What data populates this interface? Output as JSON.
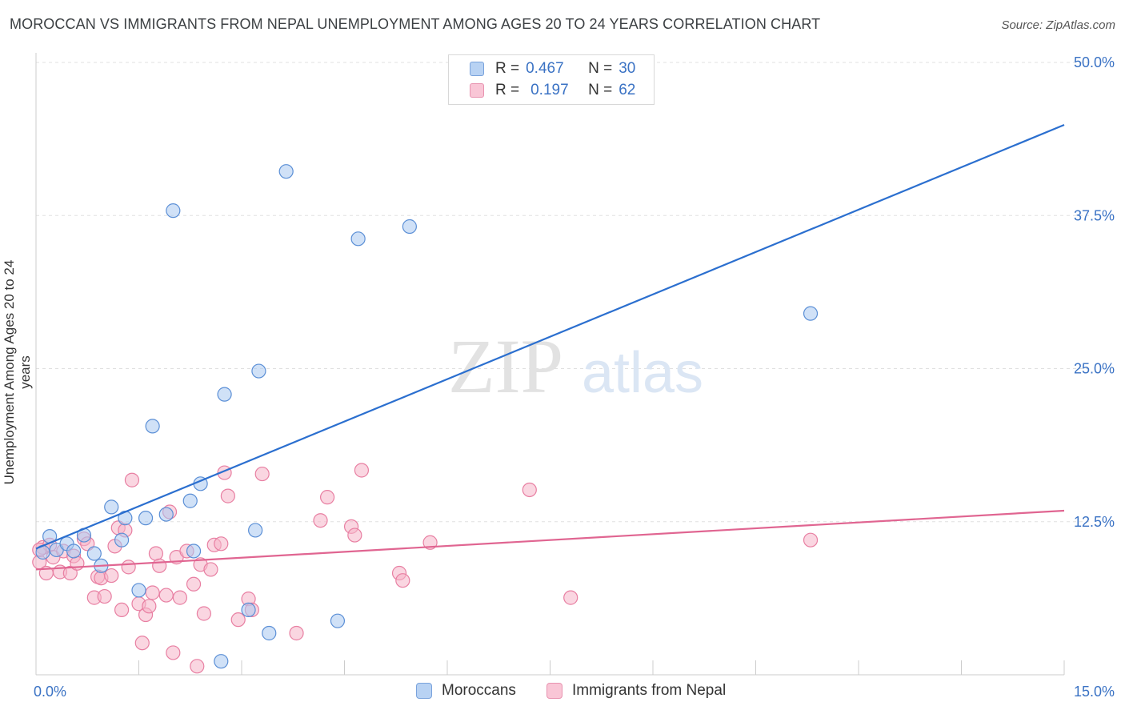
{
  "title": "MOROCCAN VS IMMIGRANTS FROM NEPAL UNEMPLOYMENT AMONG AGES 20 TO 24 YEARS CORRELATION CHART",
  "source": "Source: ZipAtlas.com",
  "watermark": {
    "zip": "ZIP",
    "atlas": "atlas"
  },
  "legend": {
    "rows": [
      {
        "r_label": "R =",
        "r_value": "0.467",
        "n_label": "N =",
        "n_value": "30"
      },
      {
        "r_label": "R =",
        "r_value": "0.197",
        "n_label": "N =",
        "n_value": "62"
      }
    ]
  },
  "colors": {
    "blue_fill": "#a9c8f0",
    "blue_stroke": "#5b8fd6",
    "blue_line": "#2b6fcf",
    "pink_fill": "#f6b5c9",
    "pink_stroke": "#e87fa2",
    "pink_line": "#e06591",
    "grid": "#e0e0e0",
    "axis_text": "#3a72c4"
  },
  "chart_data": {
    "type": "scatter",
    "title": "MOROCCAN VS IMMIGRANTS FROM NEPAL UNEMPLOYMENT AMONG AGES 20 TO 24 YEARS CORRELATION CHART",
    "xlabel": "",
    "ylabel": "Unemployment Among Ages 20 to 24 years",
    "xlim": [
      0,
      15
    ],
    "ylim": [
      0,
      50
    ],
    "x_tick_labels": [
      "0.0%",
      "15.0%"
    ],
    "y_ticks": [
      12.5,
      25.0,
      37.5,
      50.0
    ],
    "y_tick_labels": [
      "12.5%",
      "25.0%",
      "37.5%",
      "50.0%"
    ],
    "grid": true,
    "legend_position": "top-center",
    "series": [
      {
        "name": "Moroccans",
        "r": 0.467,
        "n": 30,
        "trend": {
          "x": [
            0.0,
            15.0
          ],
          "y": [
            10.3,
            44.9
          ]
        },
        "points": [
          [
            0.1,
            10.0
          ],
          [
            0.2,
            11.3
          ],
          [
            0.3,
            10.2
          ],
          [
            0.45,
            10.7
          ],
          [
            0.55,
            10.1
          ],
          [
            0.7,
            11.4
          ],
          [
            0.85,
            9.9
          ],
          [
            0.95,
            8.9
          ],
          [
            1.1,
            13.7
          ],
          [
            1.25,
            11.0
          ],
          [
            1.3,
            12.8
          ],
          [
            1.5,
            6.9
          ],
          [
            1.6,
            12.8
          ],
          [
            1.7,
            20.3
          ],
          [
            1.9,
            13.1
          ],
          [
            2.0,
            37.9
          ],
          [
            2.3,
            10.1
          ],
          [
            2.25,
            14.2
          ],
          [
            2.4,
            15.6
          ],
          [
            2.7,
            1.1
          ],
          [
            2.75,
            22.9
          ],
          [
            3.1,
            5.3
          ],
          [
            3.2,
            11.8
          ],
          [
            3.25,
            24.8
          ],
          [
            3.4,
            3.4
          ],
          [
            3.65,
            41.1
          ],
          [
            4.4,
            4.4
          ],
          [
            4.7,
            35.6
          ],
          [
            5.45,
            36.6
          ],
          [
            11.3,
            29.5
          ]
        ]
      },
      {
        "name": "Immigrants from Nepal",
        "r": 0.197,
        "n": 62,
        "trend": {
          "x": [
            0.0,
            15.0
          ],
          "y": [
            8.6,
            13.4
          ]
        },
        "points": [
          [
            0.05,
            9.2
          ],
          [
            0.1,
            10.4
          ],
          [
            0.15,
            8.3
          ],
          [
            0.2,
            10.6
          ],
          [
            0.25,
            9.6
          ],
          [
            0.35,
            8.4
          ],
          [
            0.4,
            10.1
          ],
          [
            0.5,
            8.3
          ],
          [
            0.55,
            9.7
          ],
          [
            0.6,
            9.1
          ],
          [
            0.7,
            11.1
          ],
          [
            0.75,
            10.7
          ],
          [
            0.85,
            6.3
          ],
          [
            0.9,
            8.0
          ],
          [
            0.95,
            7.9
          ],
          [
            1.0,
            6.4
          ],
          [
            1.1,
            8.1
          ],
          [
            1.15,
            10.5
          ],
          [
            1.2,
            12.0
          ],
          [
            1.25,
            5.3
          ],
          [
            1.3,
            11.8
          ],
          [
            1.35,
            8.8
          ],
          [
            1.4,
            15.9
          ],
          [
            1.5,
            5.8
          ],
          [
            1.55,
            2.6
          ],
          [
            1.6,
            4.9
          ],
          [
            1.65,
            5.6
          ],
          [
            1.7,
            6.7
          ],
          [
            1.75,
            9.9
          ],
          [
            1.8,
            8.9
          ],
          [
            1.9,
            6.5
          ],
          [
            1.95,
            13.3
          ],
          [
            2.0,
            1.8
          ],
          [
            2.05,
            9.6
          ],
          [
            2.1,
            6.3
          ],
          [
            2.2,
            10.1
          ],
          [
            2.3,
            7.4
          ],
          [
            2.35,
            0.7
          ],
          [
            2.4,
            9.0
          ],
          [
            2.45,
            5.0
          ],
          [
            2.55,
            8.6
          ],
          [
            2.6,
            10.6
          ],
          [
            2.7,
            10.7
          ],
          [
            2.75,
            16.5
          ],
          [
            2.8,
            14.6
          ],
          [
            2.95,
            4.5
          ],
          [
            3.1,
            6.2
          ],
          [
            3.15,
            5.3
          ],
          [
            3.3,
            16.4
          ],
          [
            3.8,
            3.4
          ],
          [
            4.15,
            12.6
          ],
          [
            4.25,
            14.5
          ],
          [
            4.6,
            12.1
          ],
          [
            4.65,
            11.4
          ],
          [
            4.75,
            16.7
          ],
          [
            5.3,
            8.3
          ],
          [
            5.35,
            7.7
          ],
          [
            5.75,
            10.8
          ],
          [
            7.2,
            15.1
          ],
          [
            7.8,
            6.3
          ],
          [
            11.3,
            11.0
          ],
          [
            0.05,
            10.2
          ]
        ]
      }
    ]
  },
  "bottom_legend": [
    {
      "label": "Moroccans"
    },
    {
      "label": "Immigrants from Nepal"
    }
  ]
}
